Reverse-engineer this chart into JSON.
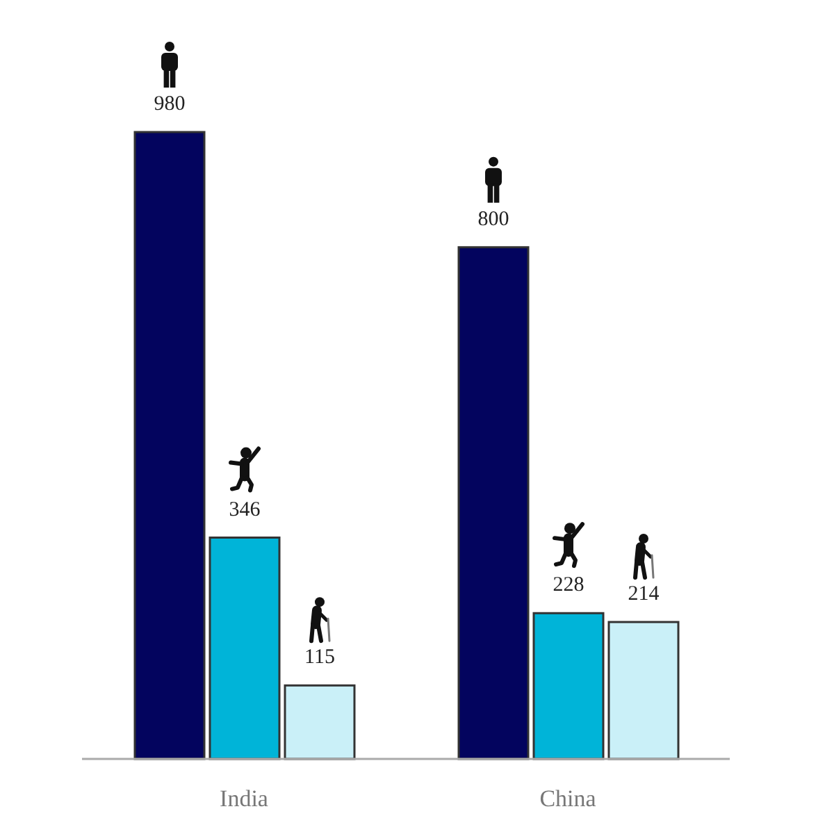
{
  "chart_data": {
    "type": "bar",
    "categories": [
      "India",
      "China"
    ],
    "series": [
      {
        "color": "#03045e",
        "values": [
          980,
          800
        ]
      },
      {
        "color": "#00b4d8",
        "values": [
          346,
          228
        ]
      },
      {
        "color": "#caf0f8",
        "values": [
          115,
          214
        ]
      }
    ],
    "data_labels": true
  }
}
